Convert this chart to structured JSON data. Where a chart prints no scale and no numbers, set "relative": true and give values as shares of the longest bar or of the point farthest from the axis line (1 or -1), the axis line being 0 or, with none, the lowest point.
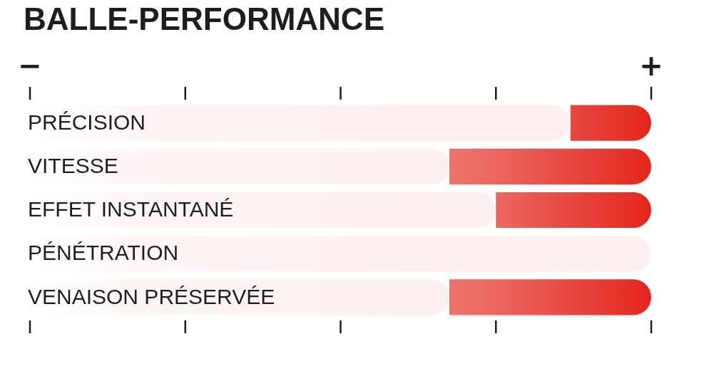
{
  "chart_data": {
    "type": "bar",
    "orientation": "horizontal",
    "relative": true,
    "stacked": true,
    "title": "BALLE-PERFORMANCE",
    "categories": [
      "PRÉCISION",
      "VITESSE",
      "EFFET INSTANTANÉ",
      "PÉNÉTRATION",
      "VENAISON PRÉSERVÉE"
    ],
    "series": [
      {
        "color": "#fdf1f0",
        "values": [
          0.87,
          0.675,
          0.75,
          1,
          0.675
        ]
      },
      {
        "color": "#e3261d",
        "values": [
          0.13,
          0.325,
          0.25,
          0,
          0.325
        ]
      }
    ],
    "annotations": [
      "−",
      "+"
    ],
    "legend": false
  }
}
